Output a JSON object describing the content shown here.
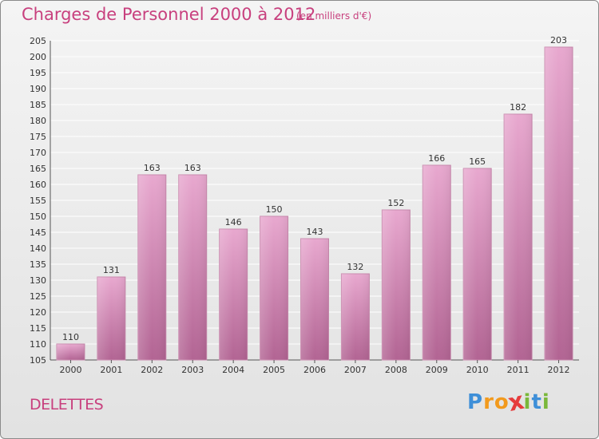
{
  "header": {
    "title": "Charges de Personnel 2000 à 2012",
    "subtitle": "(en milliers d'€)"
  },
  "footer": {
    "place": "DELETTES",
    "logo_letters": [
      "P",
      "r",
      "o",
      "x",
      "i",
      "t",
      "i"
    ]
  },
  "colors": {
    "title": "#c8407e",
    "bar_top": "#e8a8cf",
    "bar_bottom": "#b26493",
    "logo": [
      "#3e8fd8",
      "#f29a1d",
      "#f29a1d",
      "#e63c3c",
      "#7ab83a",
      "#3e8fd8",
      "#7ab83a"
    ]
  },
  "chart_data": {
    "type": "bar",
    "categories": [
      "2000",
      "2001",
      "2002",
      "2003",
      "2004",
      "2005",
      "2006",
      "2007",
      "2008",
      "2009",
      "2010",
      "2011",
      "2012"
    ],
    "values": [
      110,
      131,
      163,
      163,
      146,
      150,
      143,
      132,
      152,
      166,
      165,
      182,
      203
    ],
    "title": "Charges de Personnel 2000 à 2012",
    "ylim": [
      105,
      205
    ],
    "ytick_step": 5,
    "grid": true,
    "data_labels": true
  }
}
